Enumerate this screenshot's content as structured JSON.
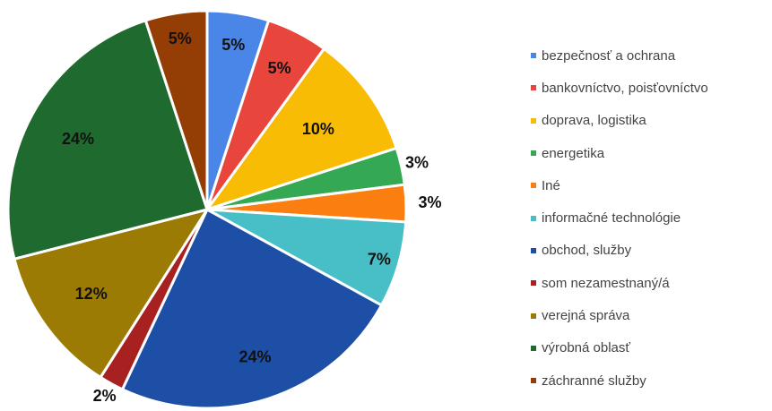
{
  "chart_data": {
    "type": "pie",
    "categories": [
      "bezpečnosť a ochrana",
      "bankovníctvo, poisťovníctvo",
      "doprava, logistika",
      "energetika",
      "Iné",
      "informačné technológie",
      "obchod, služby",
      "som nezamestnaný/á",
      "verejná správa",
      "výrobná oblasť",
      "záchranné služby"
    ],
    "values": [
      5,
      5,
      10,
      3,
      3,
      7,
      24,
      2,
      12,
      24,
      5
    ],
    "labels": [
      "5%",
      "5%",
      "10%",
      "3%",
      "3%",
      "7%",
      "24%",
      "2%",
      "12%",
      "24%",
      "5%"
    ],
    "colors": [
      "#4a86e8",
      "#e8453c",
      "#f9bc04",
      "#34a853",
      "#fa7e10",
      "#48bec7",
      "#1d4fa6",
      "#a82121",
      "#9c7b04",
      "#1f6a2e",
      "#943e06"
    ],
    "legend_position": "right"
  }
}
